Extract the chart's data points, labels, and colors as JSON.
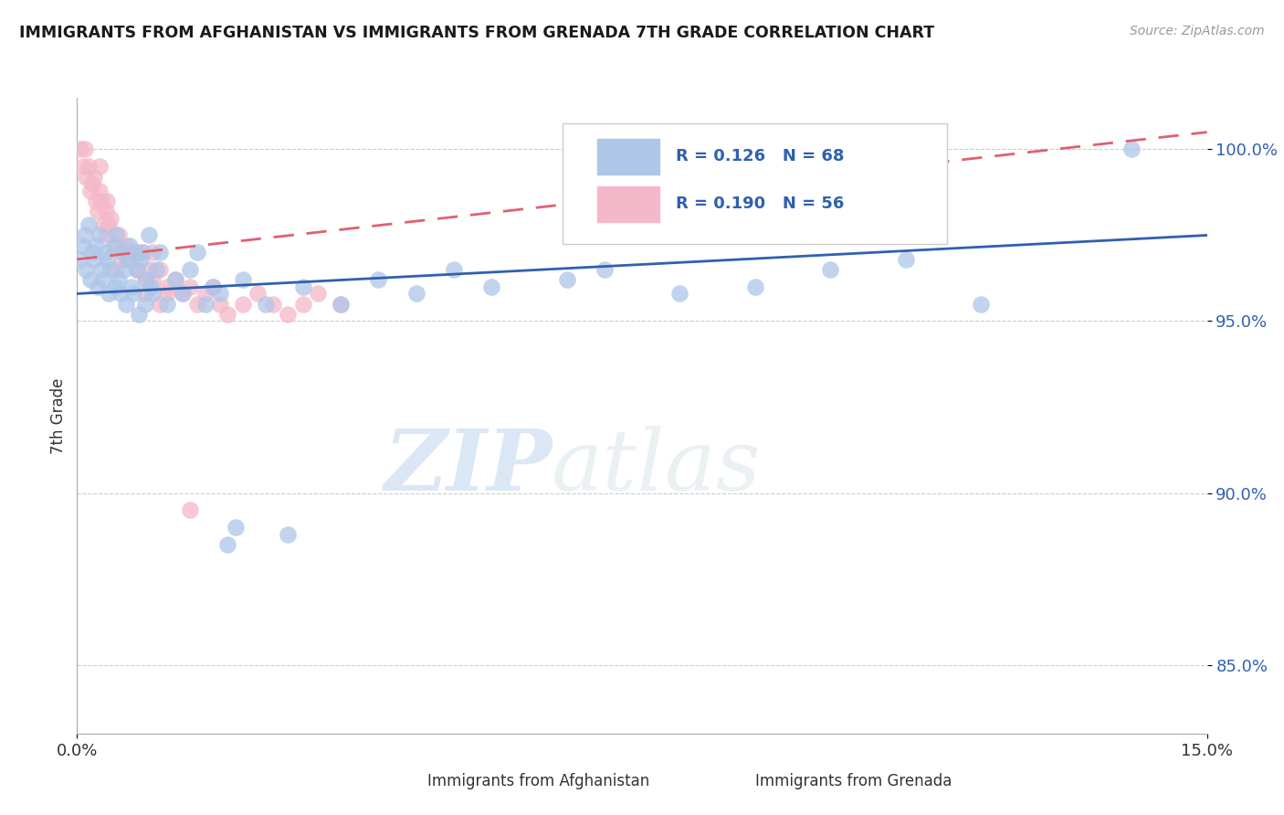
{
  "title": "IMMIGRANTS FROM AFGHANISTAN VS IMMIGRANTS FROM GRENADA 7TH GRADE CORRELATION CHART",
  "source": "Source: ZipAtlas.com",
  "ylabel": "7th Grade",
  "xlim": [
    0.0,
    15.0
  ],
  "ylim": [
    83.0,
    101.5
  ],
  "yticks": [
    85.0,
    90.0,
    95.0,
    100.0
  ],
  "ytick_labels": [
    "85.0%",
    "90.0%",
    "95.0%",
    "100.0%"
  ],
  "afghanistan_color": "#aec6e8",
  "grenada_color": "#f4b8c8",
  "afghanistan_line_color": "#3060b0",
  "grenada_line_color": "#e06070",
  "legend_R_afghanistan": "R = 0.126",
  "legend_N_afghanistan": "N = 68",
  "legend_R_grenada": "R = 0.190",
  "legend_N_grenada": "N = 56",
  "watermark_zip": "ZIP",
  "watermark_atlas": "atlas",
  "afghanistan_x": [
    0.05,
    0.08,
    0.1,
    0.12,
    0.15,
    0.18,
    0.2,
    0.22,
    0.25,
    0.28,
    0.3,
    0.32,
    0.35,
    0.38,
    0.4,
    0.42,
    0.45,
    0.48,
    0.5,
    0.52,
    0.55,
    0.58,
    0.6,
    0.62,
    0.65,
    0.68,
    0.7,
    0.72,
    0.75,
    0.78,
    0.8,
    0.82,
    0.85,
    0.88,
    0.9,
    0.92,
    0.95,
    0.98,
    1.0,
    1.05,
    1.1,
    1.2,
    1.3,
    1.4,
    1.5,
    1.6,
    1.7,
    1.8,
    1.9,
    2.0,
    2.1,
    2.2,
    2.5,
    2.8,
    3.0,
    3.5,
    4.0,
    4.5,
    5.0,
    5.5,
    6.5,
    7.0,
    8.0,
    9.0,
    10.0,
    11.0,
    12.0,
    14.0
  ],
  "afghanistan_y": [
    96.8,
    97.2,
    97.5,
    96.5,
    97.8,
    96.2,
    97.0,
    96.8,
    97.2,
    96.0,
    97.5,
    96.5,
    96.2,
    97.0,
    96.8,
    95.8,
    96.5,
    97.2,
    96.0,
    97.5,
    96.2,
    95.8,
    97.0,
    96.5,
    95.5,
    96.8,
    97.2,
    96.0,
    95.8,
    97.0,
    96.5,
    95.2,
    96.8,
    97.0,
    95.5,
    96.2,
    97.5,
    96.0,
    95.8,
    96.5,
    97.0,
    95.5,
    96.2,
    95.8,
    96.5,
    97.0,
    95.5,
    96.0,
    95.8,
    88.5,
    89.0,
    96.2,
    95.5,
    88.8,
    96.0,
    95.5,
    96.2,
    95.8,
    96.5,
    96.0,
    96.2,
    96.5,
    95.8,
    96.0,
    96.5,
    96.8,
    95.5,
    100.0
  ],
  "grenada_x": [
    0.05,
    0.08,
    0.1,
    0.12,
    0.15,
    0.18,
    0.2,
    0.22,
    0.25,
    0.28,
    0.3,
    0.32,
    0.35,
    0.38,
    0.4,
    0.42,
    0.45,
    0.5,
    0.55,
    0.6,
    0.65,
    0.7,
    0.75,
    0.8,
    0.85,
    0.9,
    0.95,
    1.0,
    1.1,
    1.2,
    1.3,
    1.4,
    1.5,
    1.6,
    1.7,
    1.8,
    1.9,
    2.0,
    2.2,
    2.4,
    2.6,
    2.8,
    3.0,
    3.2,
    3.5,
    0.5,
    0.6,
    0.7,
    0.8,
    0.9,
    1.0,
    1.1,
    1.2,
    0.3,
    0.4,
    1.5
  ],
  "grenada_y": [
    100.0,
    99.5,
    100.0,
    99.2,
    99.5,
    98.8,
    99.0,
    99.2,
    98.5,
    98.2,
    98.8,
    98.5,
    97.8,
    98.2,
    97.5,
    97.8,
    98.0,
    97.2,
    97.5,
    97.0,
    97.2,
    96.8,
    97.0,
    96.5,
    97.0,
    96.2,
    96.5,
    97.0,
    96.5,
    96.0,
    96.2,
    95.8,
    96.0,
    95.5,
    95.8,
    96.0,
    95.5,
    95.2,
    95.5,
    95.8,
    95.5,
    95.2,
    95.5,
    95.8,
    95.5,
    96.5,
    96.8,
    97.0,
    96.5,
    95.8,
    96.2,
    95.5,
    95.8,
    99.5,
    98.5,
    89.5
  ],
  "af_trendline_x": [
    0.0,
    15.0
  ],
  "af_trendline_y": [
    95.8,
    97.5
  ],
  "gr_trendline_x": [
    0.0,
    15.0
  ],
  "gr_trendline_y": [
    96.8,
    100.5
  ]
}
